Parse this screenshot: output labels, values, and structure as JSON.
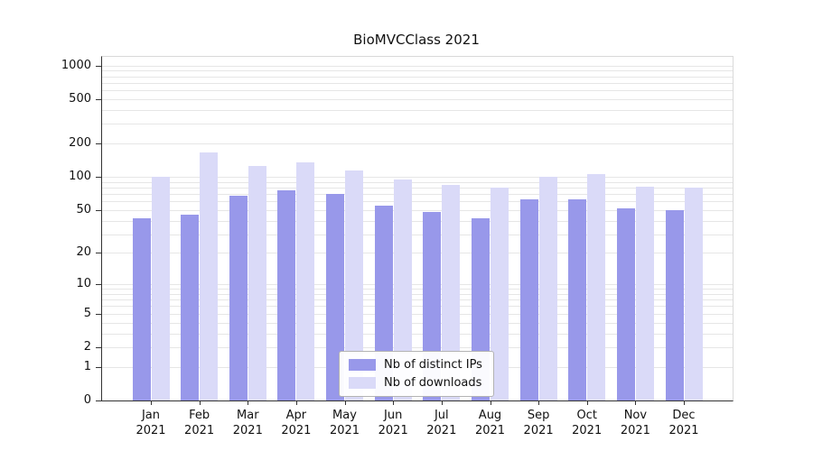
{
  "chart_data": {
    "type": "bar",
    "title": "BioMVCClass 2021",
    "year": "2021",
    "categories": [
      "Jan",
      "Feb",
      "Mar",
      "Apr",
      "May",
      "Jun",
      "Jul",
      "Aug",
      "Sep",
      "Oct",
      "Nov",
      "Dec"
    ],
    "series": [
      {
        "name": "Nb of distinct IPs",
        "color": "#9898ea",
        "values": [
          42,
          45,
          67,
          76,
          70,
          55,
          48,
          42,
          63,
          63,
          52,
          50
        ]
      },
      {
        "name": "Nb of downloads",
        "color": "#dadaf8",
        "values": [
          100,
          165,
          125,
          135,
          115,
          94,
          85,
          80,
          100,
          105,
          82,
          80
        ]
      }
    ],
    "yticks": [
      0,
      1,
      2,
      5,
      10,
      20,
      50,
      100,
      200,
      500,
      1000
    ],
    "scale": "log1p",
    "ylim": [
      0,
      1000
    ],
    "grid": true,
    "legend_position": "inside-bottom-center"
  }
}
